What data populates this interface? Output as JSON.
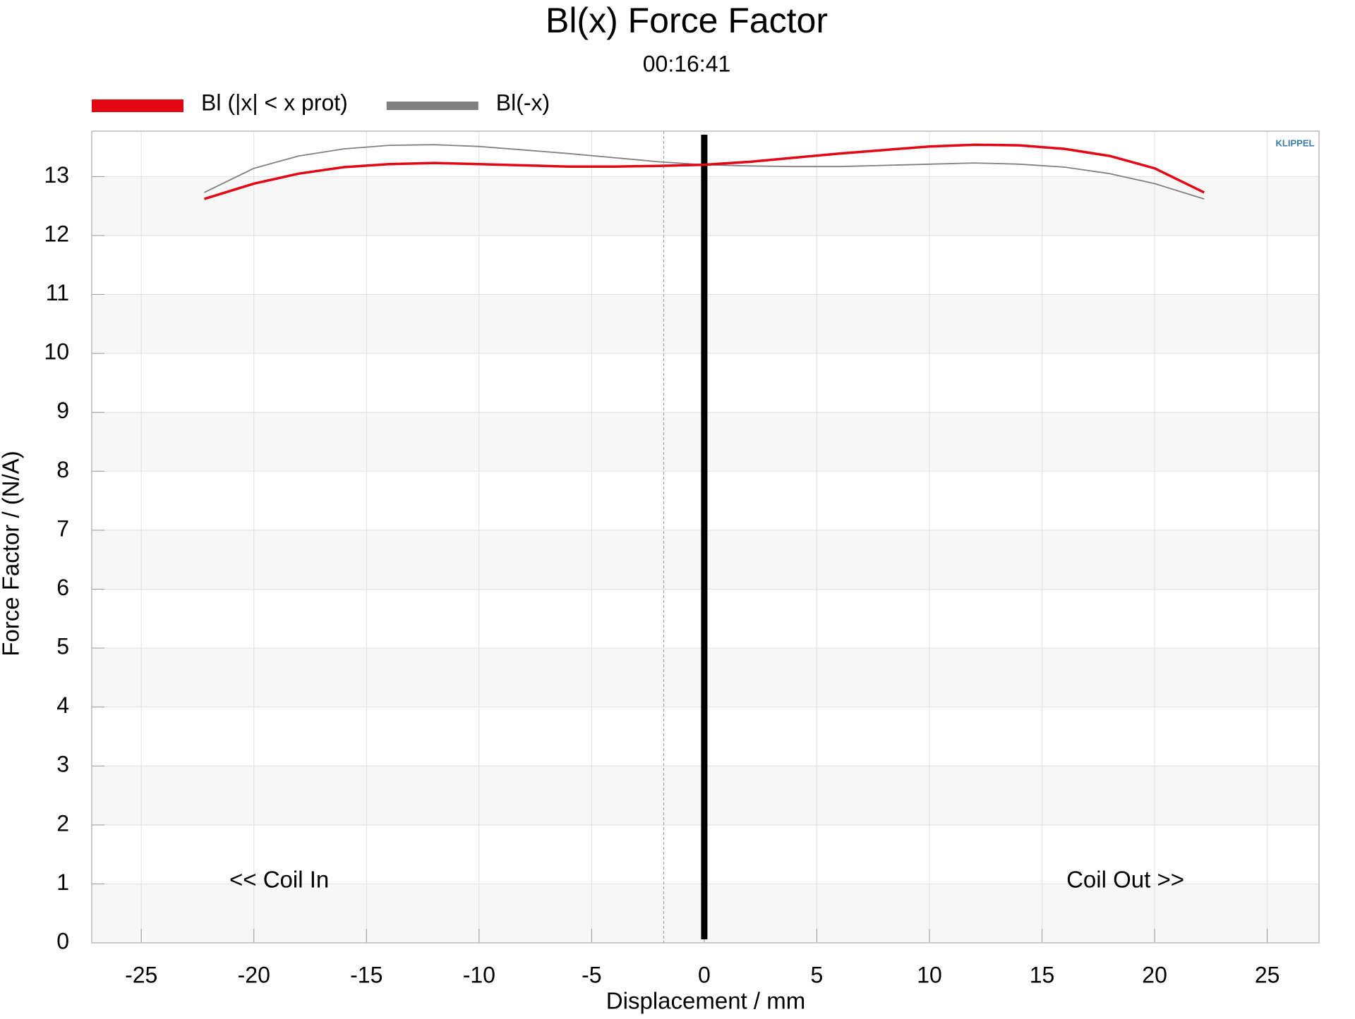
{
  "chart_data": {
    "type": "line",
    "title": "Bl(x) Force Factor",
    "subtitle": "00:16:41",
    "x_label": "Displacement / mm",
    "y_label": "Force Factor / (N/A)",
    "logo": "KLIPPEL",
    "annotations": [
      "<< Coil In",
      "Coil Out >>"
    ],
    "x": [
      -22.2,
      -20,
      -18,
      -16,
      -14,
      -12,
      -10,
      -8,
      -6,
      -4,
      -2,
      0,
      2,
      4,
      6,
      8,
      10,
      12,
      14,
      16,
      18,
      20,
      22.2
    ],
    "series": [
      {
        "name": "Bl (|x| < x prot)",
        "color": "#e30613",
        "values": [
          12.62,
          12.88,
          13.05,
          13.16,
          13.21,
          13.23,
          13.21,
          13.19,
          13.17,
          13.17,
          13.18,
          13.2,
          13.25,
          13.32,
          13.39,
          13.45,
          13.51,
          13.54,
          13.53,
          13.47,
          13.35,
          13.14,
          12.73
        ]
      },
      {
        "name": "Bl(-x)",
        "color": "#808080",
        "values": [
          12.73,
          13.14,
          13.35,
          13.47,
          13.53,
          13.54,
          13.51,
          13.45,
          13.39,
          13.32,
          13.25,
          13.2,
          13.18,
          13.17,
          13.17,
          13.19,
          13.21,
          13.23,
          13.21,
          13.16,
          13.05,
          12.88,
          12.62
        ]
      }
    ],
    "vlines": [
      {
        "x": 0,
        "color": "#000000",
        "style": "solid"
      },
      {
        "x": -1.8,
        "color": "#999999",
        "style": "dashed"
      }
    ],
    "xlim": [
      -27.2,
      27.3
    ],
    "ylim": [
      0,
      13.77
    ],
    "xticks": [
      -25,
      -20,
      -15,
      -10,
      -5,
      0,
      5,
      10,
      15,
      20,
      25
    ],
    "yticks": [
      0,
      1,
      2,
      3,
      4,
      5,
      6,
      7,
      8,
      9,
      10,
      11,
      12,
      13
    ],
    "grid": true,
    "legend": "top-left"
  }
}
